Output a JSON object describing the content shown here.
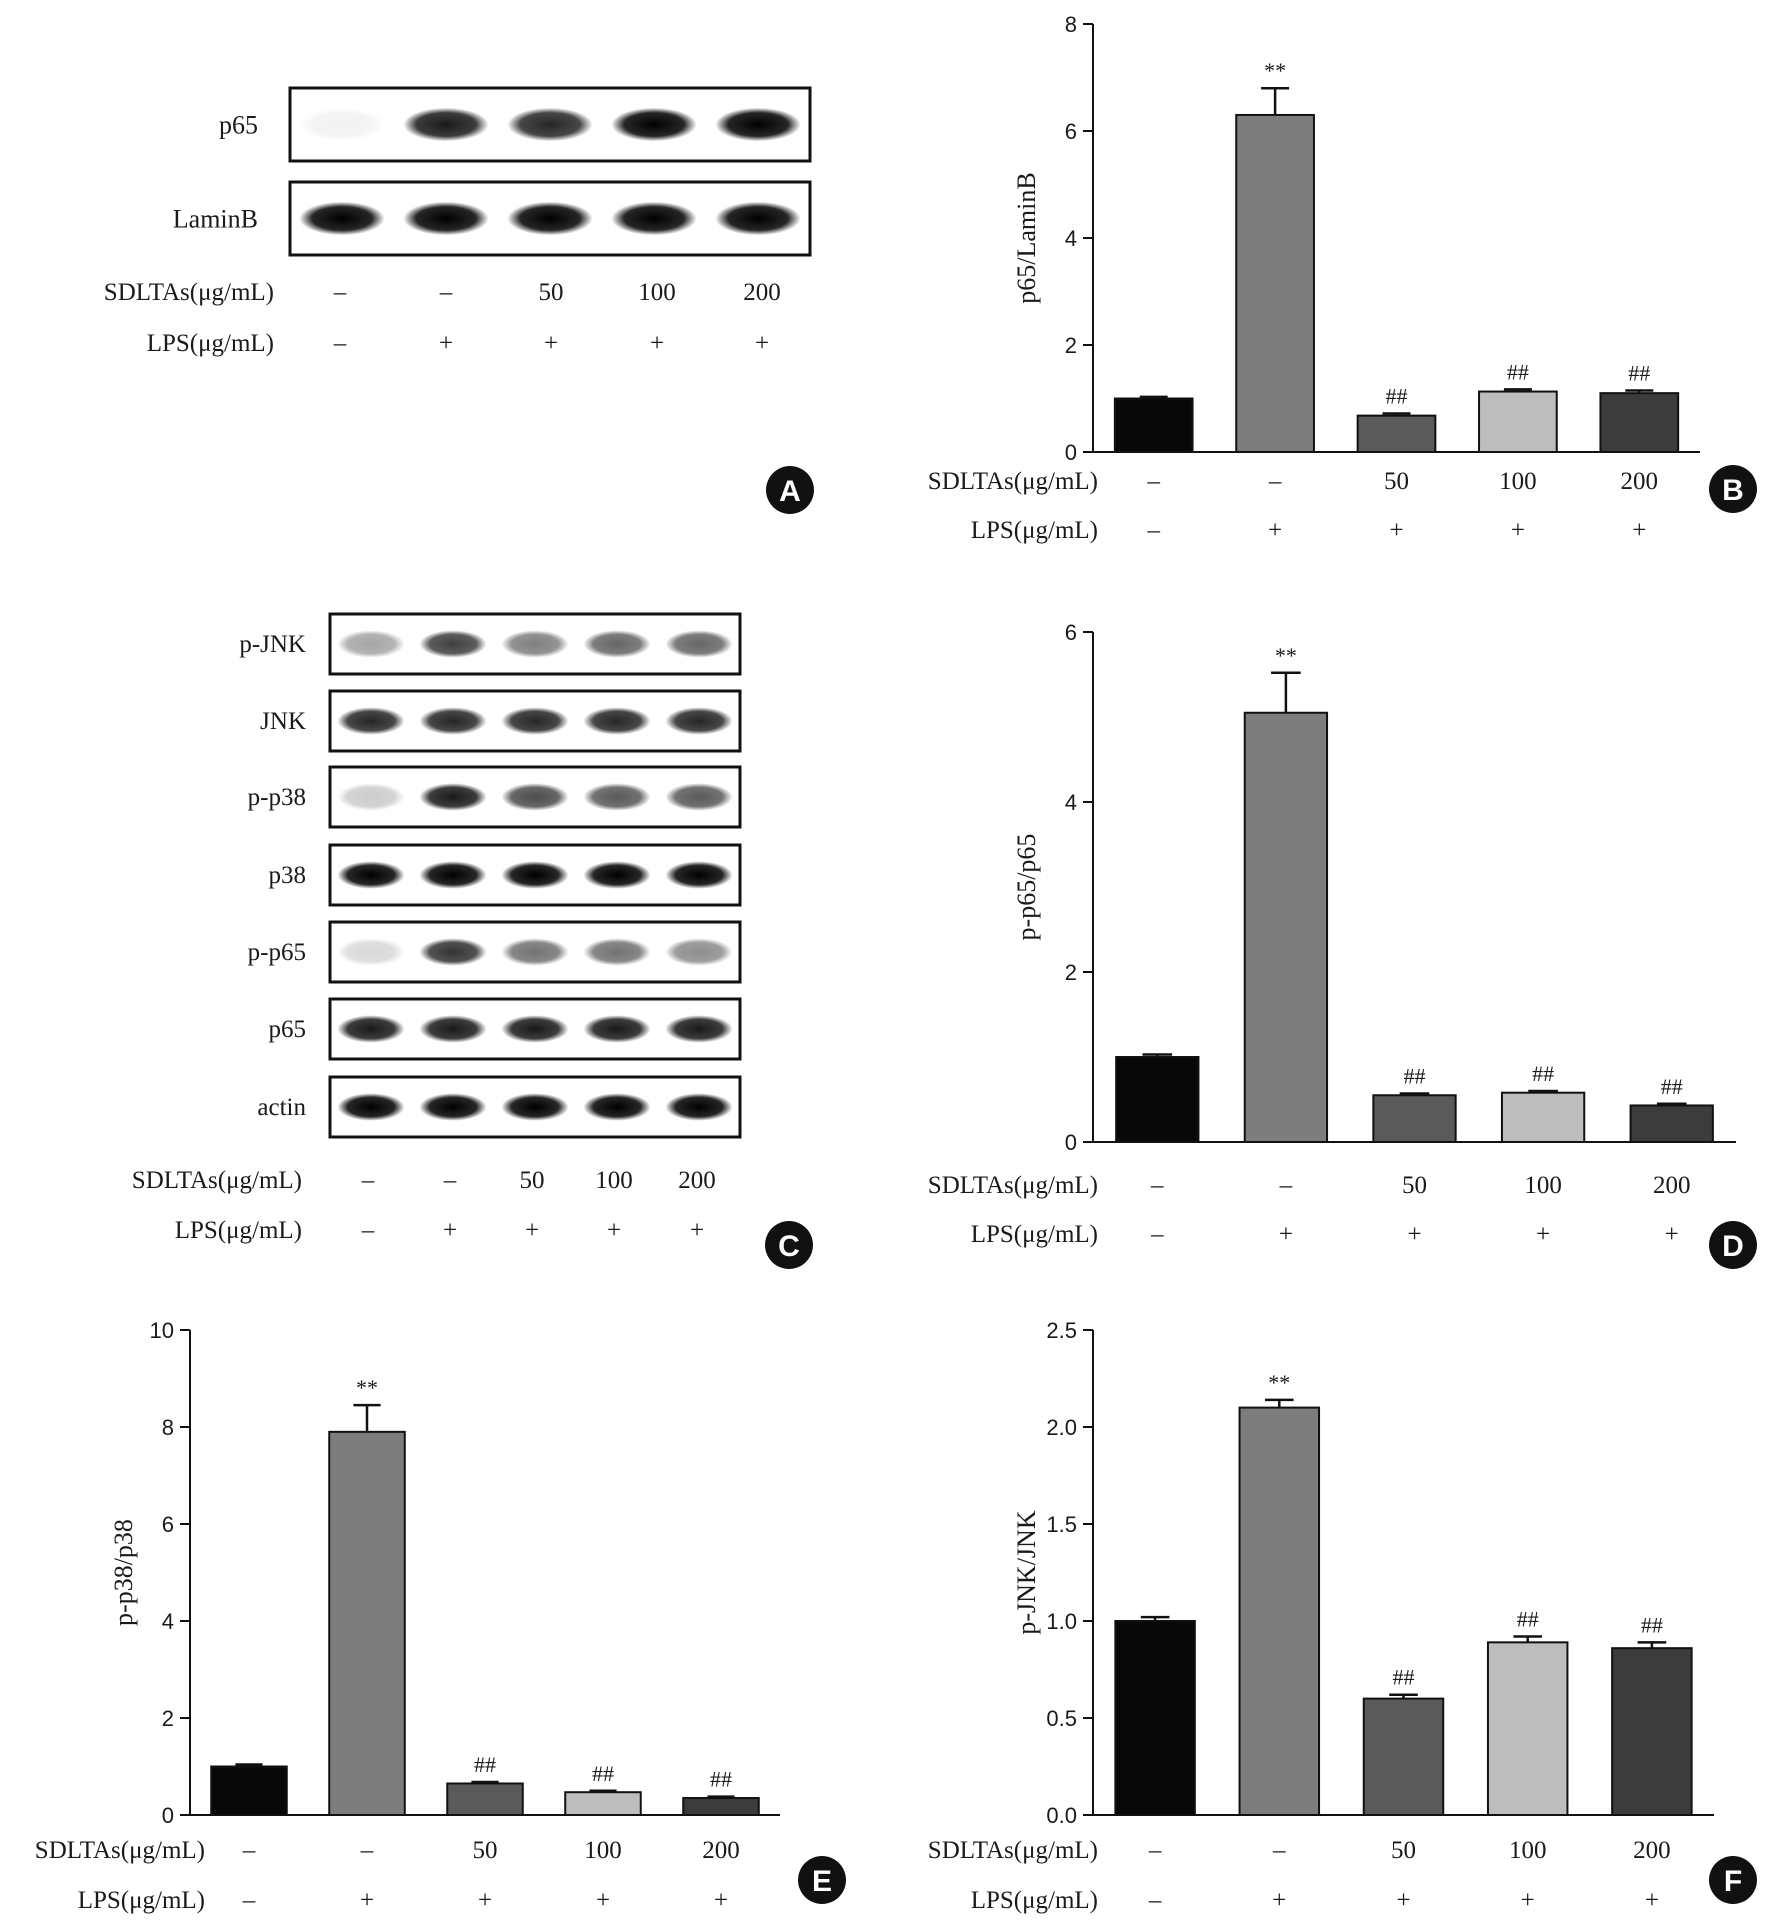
{
  "conditions": {
    "sdltas_label": "SDLTAs(μg/mL)",
    "lps_label": "LPS(μg/mL)",
    "sdltas_values": [
      "–",
      "–",
      "50",
      "100",
      "200"
    ],
    "lps_values": [
      "–",
      "+",
      "+",
      "+",
      "+"
    ]
  },
  "blot_A": {
    "letter": "A",
    "rows": [
      "p65",
      "LaminB"
    ]
  },
  "blot_C": {
    "letter": "C",
    "rows": [
      "p-JNK",
      "JNK",
      "p-p38",
      "p38",
      "p-p65",
      "p65",
      "actin"
    ]
  },
  "colors": {
    "bars": [
      "#080808",
      "#7d7d7d",
      "#5a5a5a",
      "#bdbdbd",
      "#3c3c3c"
    ]
  },
  "chart_data": [
    {
      "id": "B",
      "type": "bar",
      "letter": "B",
      "ylabel": "p65/LaminB",
      "ylim": [
        0,
        8
      ],
      "yticks": [
        "0",
        "2",
        "4",
        "6",
        "8"
      ],
      "values": [
        1.0,
        6.3,
        0.68,
        1.13,
        1.1
      ],
      "errors": [
        0.03,
        0.5,
        0.04,
        0.04,
        0.05
      ],
      "annotations": [
        "",
        "**",
        "##",
        "##",
        "##"
      ]
    },
    {
      "id": "D",
      "type": "bar",
      "letter": "D",
      "ylabel": "p-p65/p65",
      "ylim": [
        0,
        6
      ],
      "yticks": [
        "0",
        "2",
        "4",
        "6"
      ],
      "values": [
        1.0,
        5.05,
        0.55,
        0.58,
        0.43
      ],
      "errors": [
        0.03,
        0.47,
        0.02,
        0.02,
        0.02
      ],
      "annotations": [
        "",
        "**",
        "##",
        "##",
        "##"
      ]
    },
    {
      "id": "E",
      "type": "bar",
      "letter": "E",
      "ylabel": "p-p38/p38",
      "ylim": [
        0,
        10
      ],
      "yticks": [
        "0",
        "2",
        "4",
        "6",
        "8",
        "10"
      ],
      "values": [
        1.0,
        7.9,
        0.65,
        0.47,
        0.35
      ],
      "errors": [
        0.04,
        0.55,
        0.03,
        0.03,
        0.03
      ],
      "annotations": [
        "",
        "**",
        "##",
        "##",
        "##"
      ]
    },
    {
      "id": "F",
      "type": "bar",
      "letter": "F",
      "ylabel": "p-JNK/JNK",
      "ylim": [
        0,
        2.5
      ],
      "yticks": [
        "0.0",
        "0.5",
        "1.0",
        "1.5",
        "2.0",
        "2.5"
      ],
      "values": [
        1.0,
        2.1,
        0.6,
        0.89,
        0.86
      ],
      "errors": [
        0.02,
        0.04,
        0.02,
        0.03,
        0.03
      ],
      "annotations": [
        "",
        "**",
        "##",
        "##",
        "##"
      ]
    }
  ]
}
